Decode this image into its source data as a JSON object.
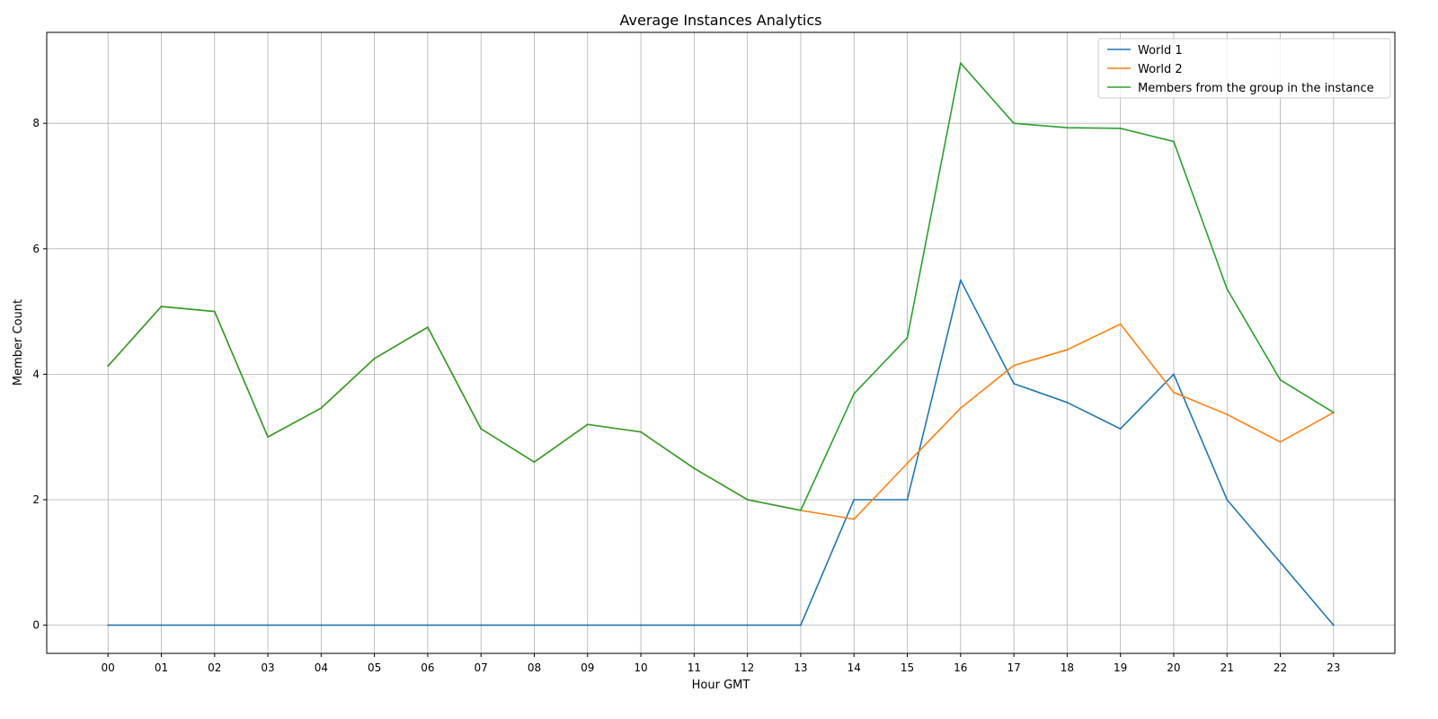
{
  "chart_data": {
    "type": "line",
    "title": "Average Instances Analytics",
    "xlabel": "Hour GMT",
    "ylabel": "Member Count",
    "categories": [
      "00",
      "01",
      "02",
      "03",
      "04",
      "05",
      "06",
      "07",
      "08",
      "09",
      "10",
      "11",
      "12",
      "13",
      "14",
      "15",
      "16",
      "17",
      "18",
      "19",
      "20",
      "21",
      "22",
      "23"
    ],
    "ylim": [
      -0.45,
      9.45
    ],
    "yticks": [
      0,
      2,
      4,
      6,
      8
    ],
    "grid": true,
    "legend_position": "top-right",
    "series": [
      {
        "name": "World 1",
        "color": "#1f77b4",
        "values": [
          0,
          0,
          0,
          0,
          0,
          0,
          0,
          0,
          0,
          0,
          0,
          0,
          0,
          0,
          2.0,
          2.0,
          5.5,
          3.85,
          3.55,
          3.13,
          4.0,
          2.0,
          1.0,
          0
        ]
      },
      {
        "name": "World 2",
        "color": "#ff7f0e",
        "values": [
          4.13,
          5.08,
          5.0,
          3.0,
          3.46,
          4.25,
          4.75,
          3.13,
          2.6,
          3.2,
          3.08,
          2.5,
          2.0,
          1.83,
          1.69,
          2.58,
          3.46,
          4.14,
          4.39,
          4.8,
          3.71,
          3.36,
          2.92,
          3.39
        ]
      },
      {
        "name": "Members from the group in the instance",
        "color": "#2ca02c",
        "values": [
          4.13,
          5.08,
          5.0,
          3.0,
          3.46,
          4.25,
          4.75,
          3.13,
          2.6,
          3.2,
          3.08,
          2.5,
          2.0,
          1.83,
          3.69,
          4.58,
          8.96,
          8.0,
          7.93,
          7.92,
          7.71,
          5.36,
          3.91,
          3.39
        ]
      }
    ]
  }
}
